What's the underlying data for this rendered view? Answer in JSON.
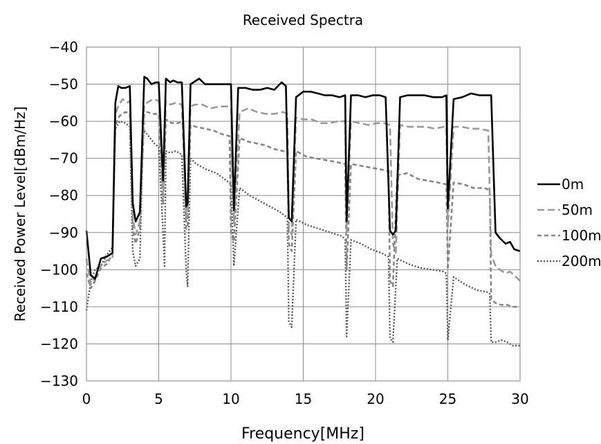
{
  "chart_data": {
    "type": "line",
    "title": "Received Spectra",
    "xlabel": "Frequency[MHz]",
    "ylabel": "Received Power Level[dBm/Hz]",
    "xlim": [
      0,
      30
    ],
    "ylim": [
      -130,
      -40
    ],
    "xticks": [
      0,
      5,
      10,
      15,
      20,
      25,
      30
    ],
    "yticks": [
      -40,
      -50,
      -60,
      -70,
      -80,
      -90,
      -100,
      -110,
      -120,
      -130
    ],
    "grid": true,
    "legend_position": "right",
    "series": [
      {
        "name": "0m",
        "style": "solid",
        "color": "#000000",
        "x": [
          0,
          0.3,
          0.6,
          1.0,
          1.4,
          1.8,
          2.0,
          2.2,
          2.4,
          2.7,
          3.0,
          3.2,
          3.4,
          3.7,
          4.0,
          4.2,
          4.5,
          4.8,
          5.0,
          5.3,
          5.5,
          5.8,
          6.0,
          6.3,
          6.6,
          6.9,
          7.0,
          7.2,
          7.4,
          7.8,
          8.2,
          8.8,
          9.4,
          10.0,
          10.2,
          10.5,
          11.0,
          11.5,
          12.0,
          12.5,
          13.0,
          13.5,
          13.8,
          14.0,
          14.2,
          14.5,
          15.0,
          15.5,
          16.0,
          16.5,
          17.0,
          17.5,
          17.9,
          18.0,
          18.3,
          18.8,
          19.3,
          19.8,
          20.3,
          20.7,
          21.0,
          21.2,
          21.4,
          21.7,
          22.2,
          22.8,
          23.4,
          24.0,
          24.6,
          24.9,
          25.0,
          25.4,
          26.0,
          26.6,
          27.2,
          27.8,
          28.0,
          28.3,
          28.6,
          29.0,
          29.3,
          29.6,
          30.0
        ],
        "y": [
          -89.5,
          -101.5,
          -102.5,
          -97.0,
          -96.5,
          -95.5,
          -55.0,
          -50.5,
          -51.0,
          -51.0,
          -50.5,
          -82.0,
          -87.0,
          -84.5,
          -48.0,
          -48.5,
          -50.0,
          -49.5,
          -49.5,
          -76.0,
          -48.5,
          -49.5,
          -49.0,
          -49.5,
          -49.5,
          -83.0,
          -82.0,
          -50.0,
          -49.5,
          -48.5,
          -50.0,
          -50.0,
          -50.0,
          -50.0,
          -84.0,
          -51.0,
          -51.0,
          -51.5,
          -51.5,
          -51.0,
          -51.5,
          -49.5,
          -50.5,
          -86.0,
          -87.0,
          -53.5,
          -52.0,
          -52.0,
          -52.5,
          -53.0,
          -53.0,
          -53.5,
          -53.0,
          -87.0,
          -53.0,
          -53.0,
          -53.5,
          -53.0,
          -53.0,
          -53.5,
          -89.5,
          -90.5,
          -89.5,
          -53.5,
          -53.0,
          -53.0,
          -53.0,
          -53.5,
          -53.5,
          -53.0,
          -83.5,
          -54.0,
          -53.5,
          -52.5,
          -53.0,
          -53.0,
          -53.0,
          -90.0,
          -91.5,
          -93.0,
          -92.5,
          -94.5,
          -95.0
        ]
      },
      {
        "name": "50m",
        "style": "long-dash",
        "color": "#9a9a9a",
        "x": [
          0,
          0.3,
          0.6,
          1.0,
          1.4,
          1.8,
          2.0,
          2.2,
          2.5,
          2.8,
          3.0,
          3.2,
          3.4,
          3.7,
          4.0,
          4.2,
          4.6,
          5.0,
          5.3,
          5.5,
          5.8,
          6.2,
          6.6,
          6.9,
          7.0,
          7.2,
          7.5,
          8.0,
          8.6,
          9.2,
          9.8,
          10.0,
          10.2,
          10.6,
          11.2,
          11.8,
          12.4,
          13.0,
          13.6,
          13.9,
          14.0,
          14.2,
          14.5,
          15.0,
          15.6,
          16.2,
          16.8,
          17.4,
          17.9,
          18.0,
          18.3,
          18.9,
          19.5,
          20.1,
          20.6,
          21.0,
          21.2,
          21.4,
          21.7,
          22.3,
          22.9,
          23.5,
          24.1,
          24.7,
          24.9,
          25.0,
          25.4,
          26.0,
          26.6,
          27.2,
          27.8,
          28.0,
          28.3,
          28.6,
          29.0,
          29.3,
          29.6,
          30.0
        ],
        "y": [
          -97.0,
          -104.0,
          -102.0,
          -99.0,
          -97.5,
          -97.0,
          -58.0,
          -56.0,
          -54.0,
          -55.0,
          -54.5,
          -85.5,
          -90.5,
          -87.0,
          -55.5,
          -55.0,
          -54.0,
          -54.5,
          -80.0,
          -54.5,
          -55.5,
          -55.0,
          -55.5,
          -86.0,
          -84.5,
          -56.0,
          -55.5,
          -55.5,
          -56.5,
          -56.0,
          -56.0,
          -56.5,
          -87.5,
          -57.5,
          -56.5,
          -57.5,
          -58.0,
          -58.0,
          -57.5,
          -58.0,
          -88.5,
          -90.5,
          -59.0,
          -59.5,
          -59.5,
          -60.5,
          -60.5,
          -60.0,
          -60.0,
          -90.0,
          -60.0,
          -60.5,
          -61.0,
          -60.5,
          -60.5,
          -61.0,
          -93.0,
          -95.5,
          -61.0,
          -61.5,
          -61.5,
          -61.5,
          -62.0,
          -61.5,
          -61.5,
          -88.5,
          -61.5,
          -61.5,
          -62.0,
          -62.0,
          -62.5,
          -96.0,
          -99.0,
          -100.0,
          -101.0,
          -100.5,
          -101.5,
          -103.0
        ]
      },
      {
        "name": "100m",
        "style": "short-dash",
        "color": "#858585",
        "x": [
          0,
          0.3,
          0.6,
          1.0,
          1.4,
          1.8,
          2.0,
          2.3,
          2.7,
          3.0,
          3.2,
          3.4,
          3.7,
          4.0,
          4.2,
          4.6,
          5.0,
          5.3,
          5.5,
          5.9,
          6.3,
          6.7,
          6.9,
          7.0,
          7.2,
          7.6,
          8.2,
          8.8,
          9.4,
          9.9,
          10.0,
          10.2,
          10.6,
          11.2,
          11.8,
          12.4,
          13.0,
          13.6,
          13.9,
          14.0,
          14.2,
          14.5,
          15.2,
          15.9,
          16.6,
          17.3,
          17.9,
          18.0,
          18.3,
          19.0,
          19.7,
          20.4,
          20.9,
          21.0,
          21.2,
          21.5,
          22.2,
          22.9,
          23.6,
          24.3,
          24.9,
          25.0,
          25.4,
          26.1,
          26.8,
          27.5,
          27.9,
          28.0,
          28.3,
          28.7,
          29.1,
          29.5,
          30.0
        ],
        "y": [
          -101.0,
          -105.0,
          -103.0,
          -99.5,
          -98.5,
          -96.0,
          -61.0,
          -58.5,
          -57.5,
          -58.0,
          -89.0,
          -93.0,
          -89.0,
          -58.0,
          -57.5,
          -58.0,
          -58.0,
          -82.5,
          -59.5,
          -60.5,
          -60.5,
          -60.0,
          -89.0,
          -88.0,
          -61.0,
          -61.5,
          -62.0,
          -62.5,
          -63.5,
          -64.0,
          -90.0,
          -92.5,
          -64.5,
          -65.5,
          -66.0,
          -66.5,
          -67.5,
          -68.0,
          -68.5,
          -93.0,
          -95.0,
          -68.0,
          -69.5,
          -70.0,
          -70.5,
          -71.0,
          -71.5,
          -100.0,
          -71.5,
          -72.0,
          -72.5,
          -73.0,
          -73.5,
          -103.0,
          -104.5,
          -74.5,
          -74.0,
          -75.5,
          -76.0,
          -76.5,
          -77.0,
          -100.0,
          -76.5,
          -77.0,
          -78.0,
          -78.0,
          -78.5,
          -108.0,
          -109.0,
          -109.5,
          -109.5,
          -110.0,
          -110.0
        ]
      },
      {
        "name": "200m",
        "style": "dotted",
        "color": "#555555",
        "x": [
          0,
          0.3,
          0.6,
          1.0,
          1.4,
          1.8,
          2.0,
          2.3,
          2.7,
          3.0,
          3.2,
          3.4,
          3.7,
          3.9,
          4.0,
          4.3,
          4.7,
          5.0,
          5.2,
          5.4,
          5.5,
          5.8,
          6.2,
          6.6,
          6.9,
          7.0,
          7.2,
          7.6,
          8.3,
          9.0,
          9.7,
          10.0,
          10.2,
          10.6,
          11.3,
          12.0,
          12.7,
          13.4,
          13.9,
          14.0,
          14.2,
          14.5,
          15.3,
          16.1,
          16.9,
          17.7,
          17.9,
          18.0,
          18.3,
          19.0,
          19.7,
          20.4,
          20.9,
          21.0,
          21.2,
          21.5,
          22.3,
          23.1,
          23.9,
          24.7,
          24.9,
          25.0,
          25.4,
          26.2,
          27.0,
          27.7,
          27.9,
          28.0,
          28.3,
          28.7,
          29.1,
          29.5,
          30.0
        ],
        "y": [
          -111.0,
          -103.0,
          -100.0,
          -99.0,
          -96.0,
          -94.0,
          -62.0,
          -60.0,
          -60.5,
          -61.5,
          -95.0,
          -99.0,
          -97.0,
          -65.0,
          -62.5,
          -64.0,
          -66.0,
          -67.0,
          -82.0,
          -99.0,
          -68.0,
          -68.5,
          -68.0,
          -69.0,
          -100.0,
          -104.5,
          -70.0,
          -71.5,
          -73.0,
          -74.0,
          -76.0,
          -77.0,
          -99.0,
          -78.0,
          -80.0,
          -81.5,
          -83.0,
          -84.5,
          -86.0,
          -114.0,
          -115.5,
          -86.5,
          -88.0,
          -89.0,
          -90.0,
          -91.0,
          -92.0,
          -118.0,
          -92.0,
          -93.0,
          -94.5,
          -95.5,
          -96.5,
          -118.5,
          -119.5,
          -97.0,
          -98.5,
          -99.5,
          -100.0,
          -100.5,
          -101.0,
          -119.0,
          -102.0,
          -104.0,
          -105.5,
          -106.0,
          -106.5,
          -119.5,
          -119.5,
          -119.0,
          -119.5,
          -120.5,
          -120.5
        ]
      }
    ]
  }
}
